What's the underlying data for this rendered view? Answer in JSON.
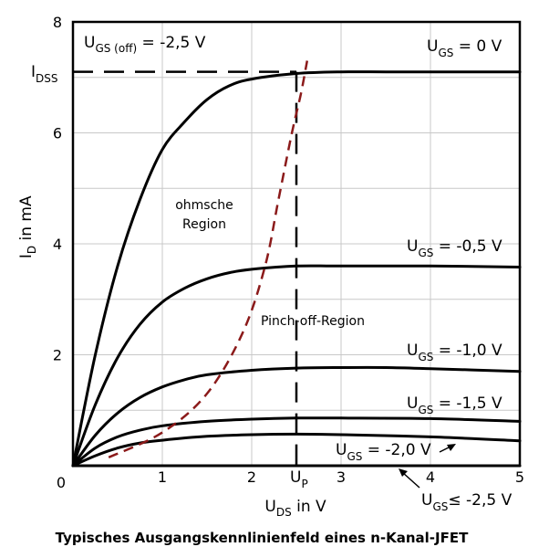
{
  "chart_data": {
    "type": "line",
    "title": "Typisches Ausgangskennlinienfeld eines n-Kanal-JFET",
    "xlabel": {
      "main": "U",
      "sub": "DS",
      "rest": " in V"
    },
    "ylabel": {
      "main": "I",
      "sub": "D",
      "rest": "  in mA"
    },
    "xlim": [
      0,
      5
    ],
    "ylim": [
      0,
      8
    ],
    "grid": true,
    "x_ticks": [
      "0",
      "1",
      "2",
      "3",
      "4",
      "5"
    ],
    "y_ticks": [
      "2",
      "4",
      "6",
      "8"
    ],
    "series": [
      {
        "name": "U_GS = 0 V",
        "x": [
          0,
          0.25,
          0.5,
          0.75,
          1,
          1.25,
          1.5,
          1.75,
          2,
          2.5,
          3,
          3.5,
          4,
          5
        ],
        "y": [
          0,
          2.0,
          3.6,
          4.8,
          5.7,
          6.2,
          6.6,
          6.85,
          6.97,
          7.07,
          7.1,
          7.1,
          7.1,
          7.1
        ]
      },
      {
        "name": "U_GS = -0,5 V",
        "x": [
          0,
          0.25,
          0.5,
          0.75,
          1,
          1.25,
          1.5,
          1.75,
          2,
          2.5,
          3,
          4,
          5
        ],
        "y": [
          0,
          1.1,
          1.95,
          2.55,
          2.95,
          3.2,
          3.37,
          3.48,
          3.54,
          3.6,
          3.6,
          3.6,
          3.58
        ]
      },
      {
        "name": "U_GS = -1,0 V",
        "x": [
          0,
          0.25,
          0.5,
          0.75,
          1,
          1.25,
          1.5,
          2,
          2.5,
          3,
          3.5,
          4,
          5
        ],
        "y": [
          0,
          0.55,
          0.95,
          1.23,
          1.42,
          1.55,
          1.64,
          1.72,
          1.76,
          1.77,
          1.77,
          1.75,
          1.7
        ]
      },
      {
        "name": "U_GS = -1,5 V",
        "x": [
          0,
          0.25,
          0.5,
          0.75,
          1,
          1.5,
          2,
          2.5,
          3,
          4,
          5
        ],
        "y": [
          0,
          0.32,
          0.52,
          0.64,
          0.72,
          0.8,
          0.84,
          0.86,
          0.86,
          0.85,
          0.8
        ]
      },
      {
        "name": "U_GS = -2,0 V",
        "x": [
          0,
          0.25,
          0.5,
          0.75,
          1,
          1.5,
          2,
          2.5,
          3,
          4,
          5
        ],
        "y": [
          0,
          0.18,
          0.32,
          0.41,
          0.46,
          0.53,
          0.56,
          0.57,
          0.56,
          0.52,
          0.45
        ]
      },
      {
        "name": "U_GS ≤ -2,5 V",
        "x": [
          0,
          5
        ],
        "y": [
          0,
          0
        ]
      }
    ],
    "pinch_off_boundary": {
      "x": [
        0.4,
        1.0,
        1.5,
        1.9,
        2.15,
        2.3,
        2.45,
        2.55,
        2.62
      ],
      "y": [
        0.15,
        0.6,
        1.3,
        2.4,
        3.6,
        4.8,
        6.0,
        6.7,
        7.3
      ]
    },
    "idss": {
      "y": 7.1
    },
    "up": {
      "x": 2.5
    },
    "annotations": {
      "ugs_off": {
        "main": "U",
        "sub": "GS (off)",
        "rest": " = -2,5 V"
      },
      "idss_label": {
        "main": "I",
        "sub": "DSS"
      },
      "up_label": {
        "main": "U",
        "sub": "P"
      },
      "ohmic_line1": "ohmsche",
      "ohmic_line2": "Region",
      "pinch_off": "Pinch-off-Region",
      "curve_labels": [
        {
          "main": "U",
          "sub": "GS",
          "rest": " = 0 V"
        },
        {
          "main": "U",
          "sub": "GS",
          "rest": " = -0,5 V"
        },
        {
          "main": "U",
          "sub": "GS",
          "rest": " = -1,0 V"
        },
        {
          "main": "U",
          "sub": "GS",
          "rest": " = -1,5 V"
        },
        {
          "main": "U",
          "sub": "GS",
          "rest": " = -2,0 V"
        },
        {
          "main": "U",
          "sub": "GS",
          "rest": "≤ -2,5 V"
        }
      ]
    },
    "colors": {
      "curve": "#000000",
      "pinch_off_boundary": "#8b1a1a",
      "grid": "#c8c8c8"
    }
  }
}
